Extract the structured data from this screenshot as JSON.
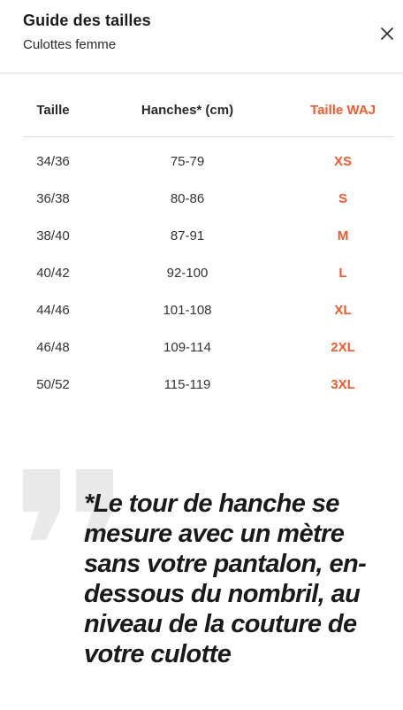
{
  "header": {
    "title": "Guide des tailles",
    "subtitle": "Culottes femme",
    "close_icon": "close-icon"
  },
  "table": {
    "columns": [
      "Taille",
      "Hanches* (cm)",
      "Taille WAJ"
    ],
    "rows": [
      [
        "34/36",
        "75-79",
        "XS"
      ],
      [
        "36/38",
        "80-86",
        "S"
      ],
      [
        "38/40",
        "87-91",
        "M"
      ],
      [
        "40/42",
        "92-100",
        "L"
      ],
      [
        "44/46",
        "101-108",
        "XL"
      ],
      [
        "46/48",
        "109-114",
        "2XL"
      ],
      [
        "50/52",
        "115-119",
        "3XL"
      ]
    ]
  },
  "note": {
    "icon": "quote-icon",
    "text": "*Le tour de hanche se mesure avec un mètre sans votre pantalon, en-dessous du nombril, au niveau de la couture de votre culotte"
  },
  "colors": {
    "accent": "#f25a2c",
    "quote_mark": "#e9e9e9",
    "divider": "#e3e3e3"
  }
}
